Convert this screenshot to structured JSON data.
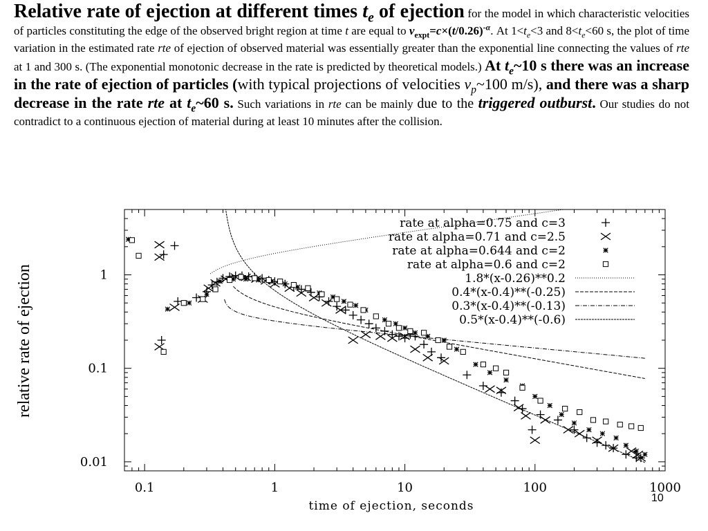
{
  "caption": {
    "t1": "Relative rate of ejection at different times ",
    "t2": "t",
    "t3": "e",
    "t4": " of ejection",
    "t5": " for the model in which characteristic velocities of particles constituting the edge of the observed bright region at time ",
    "t6": "t",
    "t7": " are equal to ",
    "t8": "v",
    "t9": "expt",
    "t10": "=",
    "t11": "c",
    "t12": "×(",
    "t13": "t",
    "t14": "/0.26)",
    "t15": "-α",
    "t16": ". At 1<",
    "t17": "t",
    "t18": "e",
    "t19": "<3 and 8<",
    "t20": "t",
    "t21": "e",
    "t22": "<60 s, the plot of time variation in the estimated rate ",
    "t23": "rte",
    "t24": " of ejection of observed material was essentially greater than the exponential line connecting the values of ",
    "t25": "rte",
    "t26": " at 1 and 300 s. (The exponential monotonic decrease in the rate is predicted by theoretical models.) ",
    "t27": "At ",
    "t28": "t",
    "t29": "e",
    "t30": "~10 s there was an increase in the rate of ejection of particles (",
    "t31": "with typical projections of velocities ",
    "t32": "v",
    "t33": "p",
    "t34": "~100 m/s), ",
    "t35": "and there was a sharp decrease in the rate ",
    "t36": "rte",
    "t37": " at ",
    "t38": "t",
    "t39": "e",
    "t40": "~60 s.",
    "t41": " Such variations in ",
    "t42": "rte",
    "t43": " can be mainly ",
    "t44": "due to the ",
    "t45": "triggered outburst",
    "t46": ".",
    "t47": " Our studies do not contradict to a continuous ejection of material during at least 10 minutes after the collision."
  },
  "page_number": "10",
  "chart_data": {
    "type": "scatter",
    "xlabel": "time of ejection, seconds",
    "ylabel": "relative rate of ejection",
    "xscale": "log",
    "yscale": "log",
    "xlim": [
      0.07,
      1000
    ],
    "ylim": [
      0.008,
      5
    ],
    "xticks": [
      0.1,
      1,
      10,
      100,
      1000
    ],
    "xtick_labels": [
      "0.1",
      "1",
      "10",
      "100",
      "1000"
    ],
    "yticks": [
      0.01,
      0.1,
      1
    ],
    "ytick_labels": [
      "0.01",
      "0.1",
      "1"
    ],
    "grid": false,
    "legend_position": "top-right",
    "series": [
      {
        "name": "rate at alpha=0.75 and c=3",
        "marker": "plus",
        "points": [
          [
            0.17,
            2.05
          ],
          [
            0.14,
            1.65
          ],
          [
            0.135,
            0.2
          ],
          [
            0.18,
            0.52
          ],
          [
            0.25,
            0.57
          ],
          [
            0.3,
            0.66
          ],
          [
            0.33,
            0.78
          ],
          [
            0.36,
            0.84
          ],
          [
            0.4,
            0.92
          ],
          [
            0.45,
            0.96
          ],
          [
            0.5,
            0.98
          ],
          [
            0.56,
            0.98
          ],
          [
            0.63,
            0.96
          ],
          [
            0.7,
            0.95
          ],
          [
            0.8,
            0.92
          ],
          [
            0.9,
            0.88
          ],
          [
            1.0,
            0.85
          ],
          [
            1.2,
            0.8
          ],
          [
            1.4,
            0.74
          ],
          [
            1.6,
            0.7
          ],
          [
            1.9,
            0.65
          ],
          [
            2.2,
            0.58
          ],
          [
            2.6,
            0.52
          ],
          [
            3.0,
            0.46
          ],
          [
            3.5,
            0.42
          ],
          [
            4.0,
            0.37
          ],
          [
            4.6,
            0.33
          ],
          [
            5.3,
            0.3
          ],
          [
            6.0,
            0.27
          ],
          [
            7.0,
            0.25
          ],
          [
            8.0,
            0.23
          ],
          [
            9.0,
            0.22
          ],
          [
            10,
            0.21
          ],
          [
            11,
            0.23
          ],
          [
            12,
            0.22
          ],
          [
            14,
            0.18
          ],
          [
            16,
            0.15
          ],
          [
            19,
            0.13
          ],
          [
            30,
            0.085
          ],
          [
            40,
            0.065
          ],
          [
            55,
            0.055
          ],
          [
            70,
            0.045
          ],
          [
            80,
            0.037
          ],
          [
            95,
            0.022
          ],
          [
            110,
            0.032
          ],
          [
            150,
            0.028
          ],
          [
            200,
            0.022
          ],
          [
            250,
            0.018
          ],
          [
            300,
            0.016
          ],
          [
            350,
            0.015
          ],
          [
            400,
            0.014
          ],
          [
            500,
            0.012
          ],
          [
            600,
            0.011
          ],
          [
            650,
            0.011
          ]
        ]
      },
      {
        "name": "rate at alpha=0.71 and c=2.5",
        "marker": "x",
        "points": [
          [
            0.13,
            2.1
          ],
          [
            0.13,
            1.55
          ],
          [
            0.13,
            0.17
          ],
          [
            0.17,
            0.45
          ],
          [
            0.28,
            0.55
          ],
          [
            0.31,
            0.72
          ],
          [
            0.35,
            0.82
          ],
          [
            0.42,
            0.9
          ],
          [
            0.5,
            0.95
          ],
          [
            0.6,
            0.94
          ],
          [
            0.72,
            0.9
          ],
          [
            0.85,
            0.86
          ],
          [
            1.0,
            0.8
          ],
          [
            1.3,
            0.72
          ],
          [
            1.6,
            0.64
          ],
          [
            2.0,
            0.57
          ],
          [
            2.5,
            0.5
          ],
          [
            3.2,
            0.42
          ],
          [
            4.0,
            0.2
          ],
          [
            5.0,
            0.23
          ],
          [
            6.5,
            0.22
          ],
          [
            8.0,
            0.21
          ],
          [
            10,
            0.22
          ],
          [
            12,
            0.16
          ],
          [
            15,
            0.13
          ],
          [
            20,
            0.12
          ],
          [
            45,
            0.06
          ],
          [
            55,
            0.058
          ],
          [
            75,
            0.038
          ],
          [
            85,
            0.031
          ],
          [
            100,
            0.017
          ],
          [
            120,
            0.028
          ],
          [
            180,
            0.022
          ],
          [
            220,
            0.02
          ],
          [
            300,
            0.017
          ],
          [
            400,
            0.014
          ],
          [
            550,
            0.013
          ],
          [
            620,
            0.012
          ],
          [
            650,
            0.011
          ]
        ]
      },
      {
        "name": "rate at alpha=0.644 and c=2",
        "marker": "star",
        "points": [
          [
            0.075,
            2.4
          ],
          [
            0.09,
            1.6
          ],
          [
            0.15,
            0.43
          ],
          [
            0.22,
            0.5
          ],
          [
            0.3,
            0.62
          ],
          [
            0.38,
            0.85
          ],
          [
            0.48,
            0.9
          ],
          [
            0.6,
            0.9
          ],
          [
            0.75,
            0.88
          ],
          [
            0.95,
            0.85
          ],
          [
            1.2,
            0.8
          ],
          [
            1.5,
            0.74
          ],
          [
            1.8,
            0.7
          ],
          [
            2.2,
            0.64
          ],
          [
            2.8,
            0.58
          ],
          [
            3.4,
            0.52
          ],
          [
            4.2,
            0.47
          ],
          [
            5.0,
            0.42
          ],
          [
            6.0,
            0.36
          ],
          [
            7.0,
            0.33
          ],
          [
            8.5,
            0.3
          ],
          [
            10,
            0.27
          ],
          [
            12,
            0.24
          ],
          [
            15,
            0.22
          ],
          [
            20,
            0.2
          ],
          [
            25,
            0.16
          ],
          [
            35,
            0.11
          ],
          [
            45,
            0.09
          ],
          [
            60,
            0.075
          ],
          [
            80,
            0.065
          ],
          [
            100,
            0.05
          ],
          [
            130,
            0.04
          ],
          [
            160,
            0.032
          ],
          [
            200,
            0.026
          ],
          [
            260,
            0.022
          ],
          [
            330,
            0.02
          ],
          [
            420,
            0.018
          ],
          [
            500,
            0.015
          ],
          [
            600,
            0.013
          ],
          [
            700,
            0.012
          ]
        ]
      },
      {
        "name": "rate at alpha=0.6 and c=2",
        "marker": "square",
        "points": [
          [
            0.08,
            2.35
          ],
          [
            0.09,
            1.6
          ],
          [
            0.14,
            0.15
          ],
          [
            0.2,
            0.5
          ],
          [
            0.28,
            0.55
          ],
          [
            0.35,
            0.7
          ],
          [
            0.45,
            0.88
          ],
          [
            0.55,
            0.95
          ],
          [
            0.7,
            0.92
          ],
          [
            0.9,
            0.88
          ],
          [
            1.1,
            0.85
          ],
          [
            1.4,
            0.78
          ],
          [
            1.8,
            0.72
          ],
          [
            2.3,
            0.62
          ],
          [
            3.0,
            0.55
          ],
          [
            3.8,
            0.48
          ],
          [
            4.8,
            0.42
          ],
          [
            6.0,
            0.36
          ],
          [
            7.5,
            0.3
          ],
          [
            9.0,
            0.27
          ],
          [
            11,
            0.25
          ],
          [
            14,
            0.24
          ],
          [
            18,
            0.2
          ],
          [
            22,
            0.17
          ],
          [
            28,
            0.15
          ],
          [
            40,
            0.11
          ],
          [
            50,
            0.1
          ],
          [
            60,
            0.09
          ],
          [
            80,
            0.062
          ],
          [
            110,
            0.045
          ],
          [
            170,
            0.037
          ],
          [
            220,
            0.034
          ],
          [
            280,
            0.028
          ],
          [
            350,
            0.027
          ],
          [
            450,
            0.025
          ],
          [
            550,
            0.024
          ],
          [
            650,
            0.023
          ]
        ]
      }
    ],
    "curves": [
      {
        "name": "1.8*(x-0.26)**0.2",
        "style": "dotted",
        "x_start": 0.32,
        "x_end": 700
      },
      {
        "name": "0.4*(x-0.4)**(-0.25)",
        "style": "dashed",
        "x_start": 0.48,
        "x_end": 700
      },
      {
        "name": "0.3*(x-0.4)**(-0.13)",
        "style": "dashdot",
        "x_start": 0.41,
        "x_end": 700
      },
      {
        "name": "0.5*(x-0.4)**(-0.6)",
        "style": "dash-dense",
        "x_start": 0.41,
        "x_end": 700
      }
    ]
  }
}
